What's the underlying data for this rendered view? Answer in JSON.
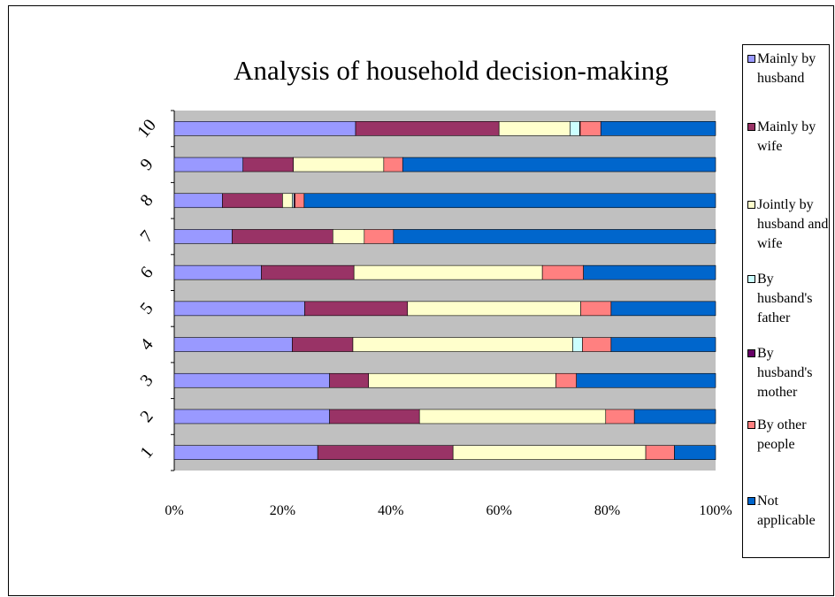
{
  "chart_data": {
    "type": "bar",
    "stacked": "percent",
    "orientation": "horizontal",
    "title": "Analysis of household decision-making",
    "categories": [
      "1",
      "2",
      "3",
      "4",
      "5",
      "6",
      "7",
      "8",
      "9",
      "10"
    ],
    "x_ticks": [
      "0%",
      "20%",
      "40%",
      "60%",
      "80%",
      "100%"
    ],
    "xlim": [
      0,
      100
    ],
    "grid": false,
    "legend_position": "right",
    "series": [
      {
        "name": "Mainly by husband",
        "color": "#9999ff",
        "values": [
          26.5,
          28.7,
          28.7,
          21.8,
          24.1,
          16.1,
          10.7,
          8.9,
          12.7,
          33.5
        ]
      },
      {
        "name": "Mainly by wife",
        "color": "#993366",
        "values": [
          25.0,
          16.6,
          7.2,
          11.2,
          19.0,
          17.1,
          18.6,
          11.1,
          9.3,
          26.5
        ]
      },
      {
        "name": "Jointly by husband and wife",
        "color": "#ffffcc",
        "values": [
          35.6,
          34.4,
          34.6,
          40.6,
          32.0,
          34.8,
          5.8,
          1.8,
          16.7,
          13.1
        ]
      },
      {
        "name": "By husband's father",
        "color": "#ccffff",
        "values": [
          0,
          0,
          0,
          1.8,
          0,
          0,
          0,
          0.3,
          0,
          1.8
        ]
      },
      {
        "name": "By husband's mother",
        "color": "#660066",
        "values": [
          0,
          0,
          0,
          0,
          0,
          0,
          0,
          0.2,
          0,
          0.1
        ]
      },
      {
        "name": "By other people",
        "color": "#ff8080",
        "values": [
          5.3,
          5.3,
          3.8,
          5.3,
          5.6,
          7.6,
          5.4,
          1.7,
          3.5,
          3.8
        ]
      },
      {
        "name": "Not applicable",
        "color": "#0066cc",
        "values": [
          7.6,
          15.0,
          25.7,
          19.3,
          19.3,
          24.4,
          59.5,
          76.0,
          57.8,
          21.2
        ]
      }
    ]
  },
  "legend": {
    "items": [
      {
        "label": "Mainly by husband",
        "color": "#9999ff"
      },
      {
        "label": "Mainly by wife",
        "color": "#993366"
      },
      {
        "label": "Jointly by husband and wife",
        "color": "#ffffcc"
      },
      {
        "label": "By husband's father",
        "color": "#ccffff"
      },
      {
        "label": "By husband's mother",
        "color": "#660066"
      },
      {
        "label": "By other people",
        "color": "#ff8080"
      },
      {
        "label": "Not applicable",
        "color": "#0066cc"
      }
    ]
  },
  "colors": {
    "plot_background": "#c0c0c0",
    "border": "#000000"
  }
}
